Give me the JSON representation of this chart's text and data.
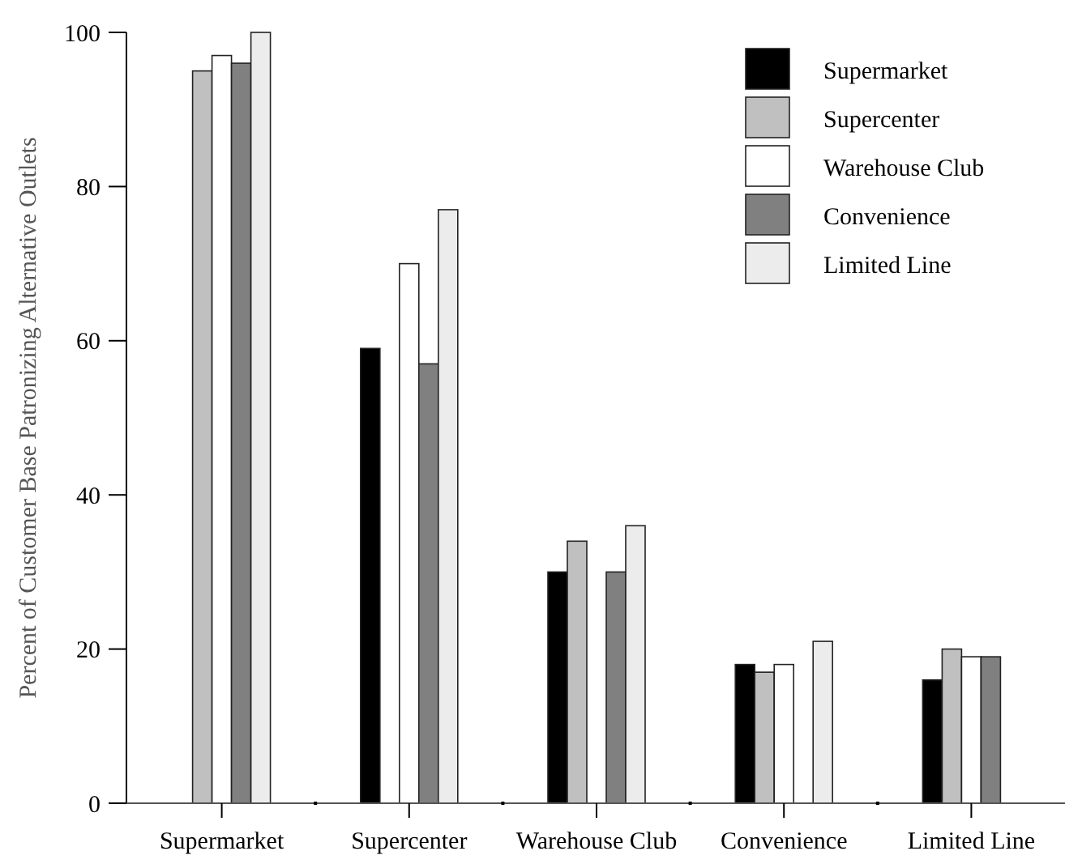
{
  "chart_data": {
    "type": "bar",
    "ylabel": "Percent of Customer Base Patronizing Alternative Outlets",
    "categories": [
      "Supermarket",
      "Supercenter",
      "Warehouse Club",
      "Convenience",
      "Limited Line"
    ],
    "series": [
      {
        "name": "Supermarket",
        "color": "#000000",
        "values": [
          null,
          59,
          30,
          18,
          16
        ]
      },
      {
        "name": "Supercenter",
        "color": "#c0c0c0",
        "values": [
          95,
          null,
          34,
          17,
          20
        ]
      },
      {
        "name": "Warehouse Club",
        "color": "#ffffff",
        "values": [
          97,
          70,
          null,
          18,
          19
        ]
      },
      {
        "name": "Convenience",
        "color": "#808080",
        "values": [
          96,
          57,
          30,
          null,
          19
        ]
      },
      {
        "name": "Limited Line",
        "color": "#ececec",
        "values": [
          100,
          77,
          36,
          21,
          null
        ]
      }
    ],
    "ylim": [
      0,
      100
    ],
    "yticks": [
      0,
      20,
      40,
      60,
      80,
      100
    ],
    "grid": false,
    "legend": "top right"
  }
}
